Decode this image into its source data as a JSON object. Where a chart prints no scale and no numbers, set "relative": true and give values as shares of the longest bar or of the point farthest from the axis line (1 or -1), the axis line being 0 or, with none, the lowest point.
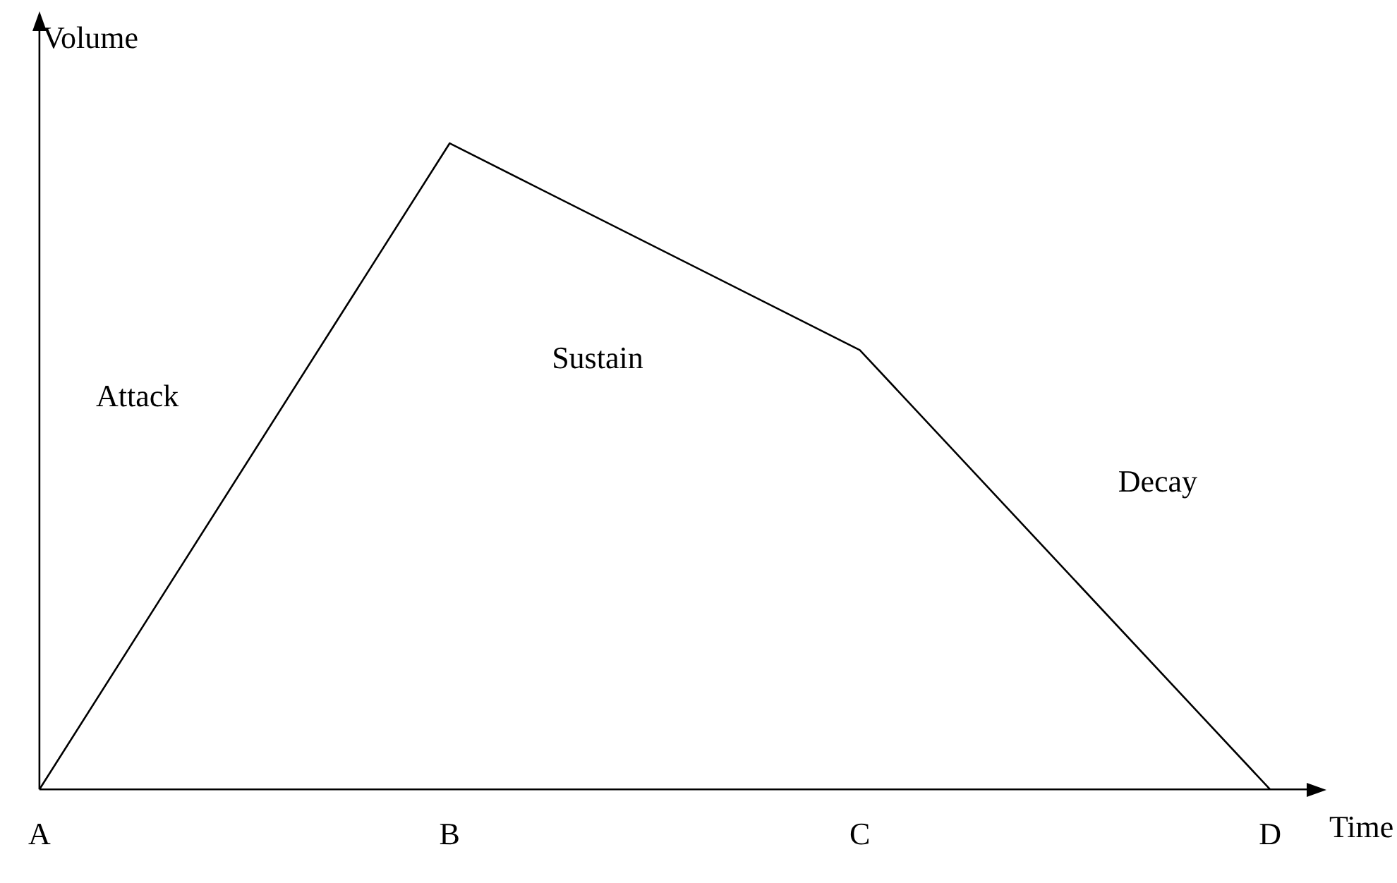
{
  "chart_data": {
    "type": "line",
    "relative": true,
    "xlabel": "Time",
    "ylabel": "Volume",
    "categories": [
      "A",
      "B",
      "C",
      "D"
    ],
    "values": [
      0,
      1,
      0.68,
      0
    ],
    "color": "#000000",
    "marker": "none",
    "line_style": "solid",
    "legend": false,
    "grid": false,
    "tick_labels": "x",
    "annotations": [
      "Attack",
      "Sustain",
      "Decay"
    ]
  }
}
